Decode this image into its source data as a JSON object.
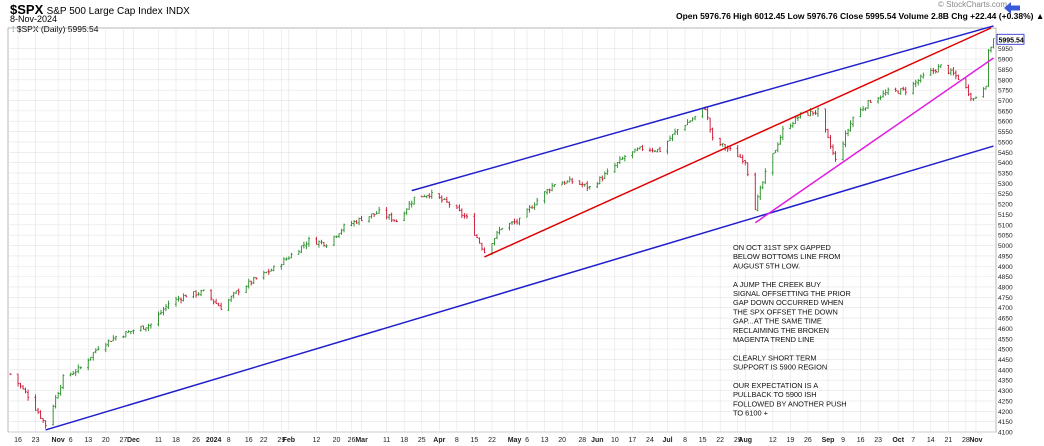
{
  "header": {
    "symbol": "$SPX",
    "name": "S&P 500 Large Cap Index",
    "exchange": "INDX",
    "date": "8-Nov-2024",
    "site": "© StockCharts.com",
    "ohlc": "Open 5976.76 High 6012.45 Low 5976.76 Close 5995.54 Volume 2.8B Chg +22.44 (+0.38%) ▲",
    "legend": "$SPX (Daily) 5995.54",
    "last_price_label": "5995.54"
  },
  "annotation": [
    "ON OCT 31ST SPX GAPPED",
    "BELOW BOTTOMS LINE FROM",
    "AUGUST 5TH LOW.",
    "",
    "A JUMP THE CREEK BUY",
    "SIGNAL OFFSETTING THE PRIOR",
    "GAP DOWN OCCURRED WHEN",
    "THE SPX OFFSET THE DOWN",
    "GAP...AT THE SAME TIME",
    "RECLAIMING THE BROKEN",
    "MAGENTA TREND LINE",
    "",
    "CLEARLY SHORT TERM",
    "SUPPORT IS 5900 REGION",
    "",
    "OUR EXPECTATION IS A",
    "PULLBACK TO 5900 ISH",
    "FOLLOWED BY ANOTHER PUSH",
    "TO 6100 +"
  ],
  "colors": {
    "up_bar": "#228b22",
    "down_bar": "#c8102e",
    "channel_blue": "#1f1fcc",
    "trend_red": "#e00000",
    "trend_magenta": "#e020e0",
    "grid": "#e4e4e4",
    "price_box": "#1f1fcc"
  },
  "chart_data": {
    "type": "line",
    "subtype": "ohlc-bar",
    "title": "$SPX (Daily) 5995.54",
    "xlabel": "",
    "ylabel": "",
    "ylim": [
      4100,
      6050
    ],
    "y_axis_side": "right",
    "y_ticks": [
      4100,
      4150,
      4200,
      4250,
      4300,
      4350,
      4400,
      4450,
      4500,
      4550,
      4600,
      4650,
      4700,
      4750,
      4800,
      4850,
      4900,
      4950,
      5000,
      5050,
      5100,
      5150,
      5200,
      5250,
      5300,
      5350,
      5400,
      5450,
      5500,
      5550,
      5600,
      5650,
      5700,
      5750,
      5800,
      5850,
      5900,
      5950
    ],
    "x_tick_labels": [
      {
        "date": "2023-10-16",
        "label": "16"
      },
      {
        "date": "2023-10-23",
        "label": "23"
      },
      {
        "date": "2023-11-01",
        "label": "Nov"
      },
      {
        "date": "2023-11-06",
        "label": "6"
      },
      {
        "date": "2023-11-13",
        "label": "13"
      },
      {
        "date": "2023-11-20",
        "label": "20"
      },
      {
        "date": "2023-11-27",
        "label": "27"
      },
      {
        "date": "2023-12-01",
        "label": "Dec"
      },
      {
        "date": "2023-12-11",
        "label": "11"
      },
      {
        "date": "2023-12-18",
        "label": "18"
      },
      {
        "date": "2023-12-26",
        "label": "26"
      },
      {
        "date": "2024-01-02",
        "label": "2024"
      },
      {
        "date": "2024-01-08",
        "label": "8"
      },
      {
        "date": "2024-01-16",
        "label": "16"
      },
      {
        "date": "2024-01-22",
        "label": "22"
      },
      {
        "date": "2024-01-29",
        "label": "29"
      },
      {
        "date": "2024-02-01",
        "label": "Feb"
      },
      {
        "date": "2024-02-12",
        "label": "12"
      },
      {
        "date": "2024-02-20",
        "label": "20"
      },
      {
        "date": "2024-02-26",
        "label": "26"
      },
      {
        "date": "2024-03-01",
        "label": "Mar"
      },
      {
        "date": "2024-03-11",
        "label": "11"
      },
      {
        "date": "2024-03-18",
        "label": "18"
      },
      {
        "date": "2024-03-25",
        "label": "25"
      },
      {
        "date": "2024-04-01",
        "label": "Apr"
      },
      {
        "date": "2024-04-08",
        "label": "8"
      },
      {
        "date": "2024-04-15",
        "label": "15"
      },
      {
        "date": "2024-04-22",
        "label": "22"
      },
      {
        "date": "2024-05-01",
        "label": "May"
      },
      {
        "date": "2024-05-06",
        "label": "6"
      },
      {
        "date": "2024-05-13",
        "label": "13"
      },
      {
        "date": "2024-05-20",
        "label": "20"
      },
      {
        "date": "2024-05-28",
        "label": "28"
      },
      {
        "date": "2024-06-03",
        "label": "Jun"
      },
      {
        "date": "2024-06-10",
        "label": "10"
      },
      {
        "date": "2024-06-17",
        "label": "17"
      },
      {
        "date": "2024-06-24",
        "label": "24"
      },
      {
        "date": "2024-07-01",
        "label": "Jul"
      },
      {
        "date": "2024-07-08",
        "label": "8"
      },
      {
        "date": "2024-07-15",
        "label": "15"
      },
      {
        "date": "2024-07-22",
        "label": "22"
      },
      {
        "date": "2024-07-29",
        "label": "29"
      },
      {
        "date": "2024-08-01",
        "label": "Aug"
      },
      {
        "date": "2024-08-12",
        "label": "12"
      },
      {
        "date": "2024-08-19",
        "label": "19"
      },
      {
        "date": "2024-08-26",
        "label": "26"
      },
      {
        "date": "2024-09-03",
        "label": "Sep"
      },
      {
        "date": "2024-09-09",
        "label": "9"
      },
      {
        "date": "2024-09-16",
        "label": "16"
      },
      {
        "date": "2024-09-23",
        "label": "23"
      },
      {
        "date": "2024-10-01",
        "label": "Oct"
      },
      {
        "date": "2024-10-07",
        "label": "7"
      },
      {
        "date": "2024-10-14",
        "label": "14"
      },
      {
        "date": "2024-10-21",
        "label": "21"
      },
      {
        "date": "2024-10-28",
        "label": "28"
      },
      {
        "date": "2024-11-01",
        "label": "Nov"
      }
    ],
    "price_path": [
      {
        "date": "2023-10-13",
        "value": 4380
      },
      {
        "date": "2023-10-20",
        "value": 4275
      },
      {
        "date": "2023-10-27",
        "value": 4135
      },
      {
        "date": "2023-11-03",
        "value": 4360
      },
      {
        "date": "2023-11-10",
        "value": 4410
      },
      {
        "date": "2023-11-17",
        "value": 4510
      },
      {
        "date": "2023-11-24",
        "value": 4560
      },
      {
        "date": "2023-12-01",
        "value": 4590
      },
      {
        "date": "2023-12-08",
        "value": 4620
      },
      {
        "date": "2023-12-15",
        "value": 4720
      },
      {
        "date": "2023-12-22",
        "value": 4760
      },
      {
        "date": "2023-12-29",
        "value": 4775
      },
      {
        "date": "2024-01-05",
        "value": 4700
      },
      {
        "date": "2024-01-12",
        "value": 4785
      },
      {
        "date": "2024-01-19",
        "value": 4840
      },
      {
        "date": "2024-01-26",
        "value": 4890
      },
      {
        "date": "2024-02-02",
        "value": 4955
      },
      {
        "date": "2024-02-09",
        "value": 5025
      },
      {
        "date": "2024-02-16",
        "value": 5010
      },
      {
        "date": "2024-02-23",
        "value": 5090
      },
      {
        "date": "2024-03-01",
        "value": 5130
      },
      {
        "date": "2024-03-08",
        "value": 5160
      },
      {
        "date": "2024-03-15",
        "value": 5120
      },
      {
        "date": "2024-03-22",
        "value": 5230
      },
      {
        "date": "2024-03-28",
        "value": 5250
      },
      {
        "date": "2024-04-05",
        "value": 5200
      },
      {
        "date": "2024-04-12",
        "value": 5130
      },
      {
        "date": "2024-04-19",
        "value": 4970
      },
      {
        "date": "2024-04-26",
        "value": 5090
      },
      {
        "date": "2024-05-03",
        "value": 5120
      },
      {
        "date": "2024-05-10",
        "value": 5220
      },
      {
        "date": "2024-05-17",
        "value": 5300
      },
      {
        "date": "2024-05-24",
        "value": 5310
      },
      {
        "date": "2024-05-31",
        "value": 5280
      },
      {
        "date": "2024-06-07",
        "value": 5350
      },
      {
        "date": "2024-06-14",
        "value": 5430
      },
      {
        "date": "2024-06-21",
        "value": 5470
      },
      {
        "date": "2024-06-28",
        "value": 5460
      },
      {
        "date": "2024-07-05",
        "value": 5560
      },
      {
        "date": "2024-07-12",
        "value": 5620
      },
      {
        "date": "2024-07-16",
        "value": 5665
      },
      {
        "date": "2024-07-19",
        "value": 5510
      },
      {
        "date": "2024-07-26",
        "value": 5460
      },
      {
        "date": "2024-08-01",
        "value": 5410
      },
      {
        "date": "2024-08-05",
        "value": 5186
      },
      {
        "date": "2024-08-09",
        "value": 5345
      },
      {
        "date": "2024-08-16",
        "value": 5555
      },
      {
        "date": "2024-08-23",
        "value": 5630
      },
      {
        "date": "2024-08-30",
        "value": 5648
      },
      {
        "date": "2024-09-06",
        "value": 5410
      },
      {
        "date": "2024-09-13",
        "value": 5620
      },
      {
        "date": "2024-09-20",
        "value": 5700
      },
      {
        "date": "2024-09-27",
        "value": 5740
      },
      {
        "date": "2024-10-04",
        "value": 5750
      },
      {
        "date": "2024-10-11",
        "value": 5815
      },
      {
        "date": "2024-10-18",
        "value": 5865
      },
      {
        "date": "2024-10-25",
        "value": 5810
      },
      {
        "date": "2024-10-31",
        "value": 5705
      },
      {
        "date": "2024-11-05",
        "value": 5782
      },
      {
        "date": "2024-11-06",
        "value": 5930
      },
      {
        "date": "2024-11-08",
        "value": 5995.54
      }
    ],
    "trendlines": [
      {
        "color": "channel_blue",
        "start": {
          "date": "2023-10-27",
          "value": 4110
        },
        "end": {
          "date": "2024-11-08",
          "value": 5480
        }
      },
      {
        "color": "channel_blue",
        "start": {
          "date": "2024-03-21",
          "value": 5265
        },
        "end": {
          "date": "2024-11-08",
          "value": 6060
        }
      },
      {
        "color": "trend_red",
        "start": {
          "date": "2024-04-19",
          "value": 4945
        },
        "end": {
          "date": "2024-11-07",
          "value": 6050
        }
      },
      {
        "color": "trend_magenta",
        "start": {
          "date": "2024-08-05",
          "value": 5110
        },
        "end": {
          "date": "2024-11-08",
          "value": 5905
        }
      }
    ]
  }
}
